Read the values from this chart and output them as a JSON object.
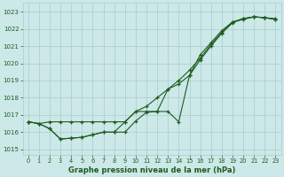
{
  "x": [
    0,
    1,
    2,
    3,
    4,
    5,
    6,
    7,
    8,
    9,
    10,
    11,
    12,
    13,
    14,
    15,
    16,
    17,
    18,
    19,
    20,
    21,
    22,
    23
  ],
  "s1": [
    1016.6,
    1016.5,
    1016.6,
    1016.6,
    1016.6,
    1016.6,
    1016.6,
    1016.6,
    1016.6,
    1016.6,
    1017.2,
    1017.5,
    1018.0,
    1018.5,
    1019.0,
    1019.6,
    1020.3,
    1021.1,
    1021.8,
    1022.4,
    1022.55,
    1022.7,
    1022.65,
    1022.6
  ],
  "s2": [
    1016.6,
    1016.5,
    1016.2,
    1015.6,
    1015.65,
    1015.7,
    1015.85,
    1016.0,
    1016.0,
    1016.6,
    1017.2,
    1017.2,
    1017.2,
    1017.2,
    1016.6,
    1019.3,
    1020.5,
    1021.2,
    1021.9,
    1022.4,
    1022.6,
    1022.7,
    1022.65,
    1022.55
  ],
  "s3": [
    1016.6,
    1016.5,
    1016.2,
    1015.6,
    1015.65,
    1015.7,
    1015.85,
    1016.0,
    1016.0,
    1016.0,
    1016.65,
    1017.15,
    1017.2,
    1018.5,
    1018.8,
    1019.3,
    1020.2,
    1021.0,
    1021.75,
    1022.35,
    1022.6,
    1022.7,
    1022.65,
    1022.55
  ],
  "bg_color": "#cce8e8",
  "grid_color": "#aacccc",
  "line_color": "#1e5c1e",
  "ylabel_ticks": [
    1015,
    1016,
    1017,
    1018,
    1019,
    1020,
    1021,
    1022,
    1023
  ],
  "xlabel": "Graphe pression niveau de la mer (hPa)",
  "ylim": [
    1014.7,
    1023.5
  ],
  "xlim": [
    -0.5,
    23.5
  ]
}
